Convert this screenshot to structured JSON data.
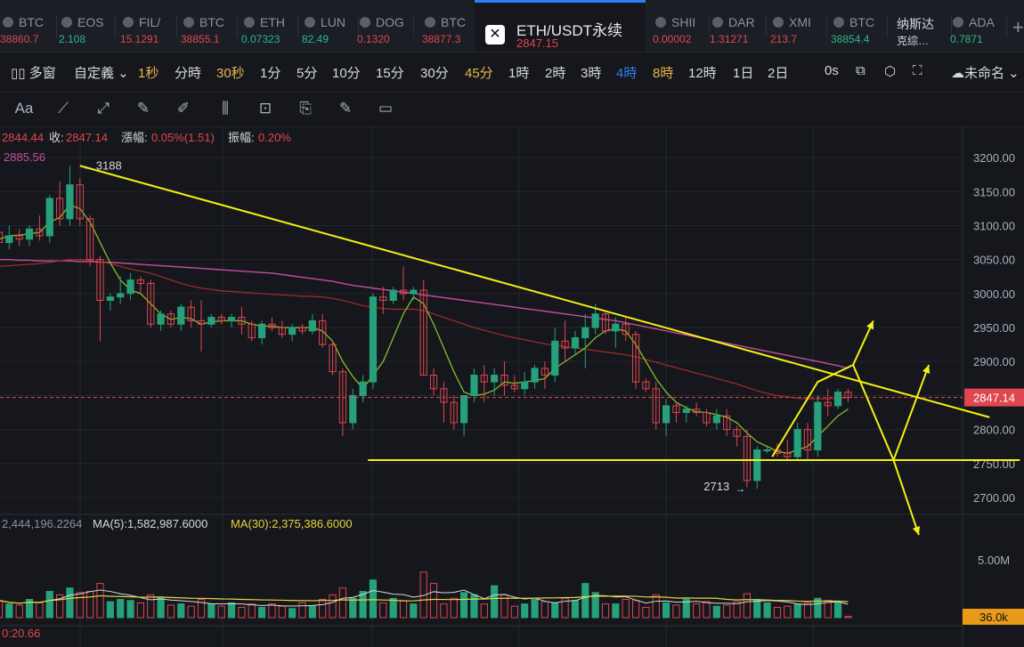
{
  "tickers": [
    {
      "name": "BTC",
      "price": "38860.7",
      "dir": "dn"
    },
    {
      "name": "EOS",
      "price": "2.108",
      "dir": "up"
    },
    {
      "name": "FIL/",
      "price": "15.1291",
      "dir": "dn"
    },
    {
      "name": "BTC",
      "price": "38855.1",
      "dir": "dn"
    },
    {
      "name": "ETH",
      "price": "0.07323",
      "dir": "up"
    },
    {
      "name": "LUN",
      "price": "82.49",
      "dir": "up"
    },
    {
      "name": "DOG",
      "price": "0.1320",
      "dir": "dn"
    },
    {
      "name": "BTC",
      "price": "38877.3",
      "dir": "dn"
    },
    {
      "name": "SHII",
      "price": "0.00002",
      "dir": "dn"
    },
    {
      "name": "DAR",
      "price": "1.31271",
      "dir": "dn"
    },
    {
      "name": "XMI",
      "price": "213.7",
      "dir": "dn"
    },
    {
      "name": "BTC",
      "price": "38854.4",
      "dir": "up"
    },
    {
      "name": "纳斯达",
      "price": "克综…",
      "dir": "plain"
    },
    {
      "name": "ADA",
      "price": "0.7871",
      "dir": "up"
    }
  ],
  "active_ticker": {
    "name": "ETH/USDT永续",
    "price": "2847.15",
    "plus": "+"
  },
  "toolbar": {
    "multi_window": "多窗",
    "custom": "自定義",
    "timeframes": [
      "1秒",
      "分時",
      "30秒",
      "1分",
      "5分",
      "10分",
      "15分",
      "30分",
      "45分",
      "1時",
      "2時",
      "3時",
      "4時",
      "8時",
      "12時",
      "1日",
      "2日"
    ],
    "selected": "4時",
    "highlighted": [
      "1秒",
      "30秒",
      "45分",
      "8時"
    ],
    "countdown": "0s",
    "layout_name": "未命名"
  },
  "drawing_tools": [
    "text-tool",
    "ruler-tool",
    "measure-tool",
    "pencil-tool",
    "brush-tool",
    "candle-tool",
    "lock-tool",
    "copy-tool",
    "note-tool",
    "trash-tool"
  ],
  "ohlc_line": {
    "open_label": "2844.44",
    "close_label": "收:",
    "close": "2847.14",
    "change_label": "漲幅:",
    "change": "0.05%(1.51)",
    "amp_label": "振幅:",
    "amp": "0.20%"
  },
  "ma_label": "2885.56",
  "volume_header": {
    "vol": "2,444,196.2264",
    "ma5_label": "MA(5):1,582,987.6000",
    "ma30_label": "MA(30):2,375,386.6000"
  },
  "bottom_indicator": "0:20.66",
  "chart_data": {
    "type": "candlestick",
    "symbol": "ETH/USDT",
    "interval": "4時",
    "y_ticks": [
      3200,
      3150,
      3100,
      3050,
      3000,
      2950,
      2900,
      2850,
      2800,
      2750,
      2700
    ],
    "y_tick_labels": [
      "3200.00",
      "3150.00",
      "3100.00",
      "3050.00",
      "3000.00",
      "2950.00",
      "2900.00",
      "2850.00",
      "2800.00",
      "2750.00",
      "2700.00"
    ],
    "ylim": [
      2683,
      3225
    ],
    "last_price": 2847.14,
    "last_price_label": "2847.14",
    "high_annotation": {
      "value": 3188,
      "label": "3188"
    },
    "low_annotation": {
      "value": 2713,
      "label": "2713"
    },
    "candles": [
      [
        3090,
        3105,
        3070,
        3075
      ],
      [
        3075,
        3100,
        3065,
        3085
      ],
      [
        3085,
        3095,
        3070,
        3080
      ],
      [
        3080,
        3100,
        3070,
        3095
      ],
      [
        3095,
        3115,
        3078,
        3085
      ],
      [
        3085,
        3145,
        3075,
        3140
      ],
      [
        3140,
        3165,
        3100,
        3110
      ],
      [
        3110,
        3188,
        3100,
        3160
      ],
      [
        3160,
        3170,
        3100,
        3110
      ],
      [
        3110,
        3115,
        3040,
        3050
      ],
      [
        3050,
        3055,
        2930,
        2990
      ],
      [
        2990,
        3000,
        2975,
        2995
      ],
      [
        2995,
        3025,
        2985,
        3000
      ],
      [
        3000,
        3030,
        2990,
        3020
      ],
      [
        3020,
        3025,
        3000,
        3015
      ],
      [
        3015,
        3020,
        2950,
        2955
      ],
      [
        2955,
        2975,
        2945,
        2970
      ],
      [
        2970,
        2975,
        2950,
        2955
      ],
      [
        2955,
        2985,
        2945,
        2980
      ],
      [
        2980,
        2990,
        2950,
        2960
      ],
      [
        2960,
        2990,
        2915,
        2955
      ],
      [
        2955,
        2970,
        2950,
        2965
      ],
      [
        2965,
        2970,
        2955,
        2960
      ],
      [
        2960,
        2970,
        2950,
        2965
      ],
      [
        2965,
        2980,
        2940,
        2955
      ],
      [
        2955,
        2960,
        2930,
        2935
      ],
      [
        2935,
        2960,
        2925,
        2955
      ],
      [
        2955,
        2965,
        2945,
        2950
      ],
      [
        2950,
        2960,
        2935,
        2940
      ],
      [
        2940,
        2955,
        2930,
        2950
      ],
      [
        2950,
        2955,
        2940,
        2945
      ],
      [
        2945,
        2970,
        2940,
        2960
      ],
      [
        2960,
        2970,
        2920,
        2925
      ],
      [
        2925,
        2930,
        2880,
        2885
      ],
      [
        2885,
        2890,
        2790,
        2810
      ],
      [
        2810,
        2860,
        2800,
        2850
      ],
      [
        2850,
        2880,
        2840,
        2870
      ],
      [
        2870,
        3000,
        2860,
        2995
      ],
      [
        2995,
        3010,
        2970,
        2990
      ],
      [
        2990,
        3010,
        2985,
        3005
      ],
      [
        3005,
        3040,
        2990,
        3000
      ],
      [
        3000,
        3010,
        2990,
        3005
      ],
      [
        3005,
        3020,
        2880,
        2880
      ],
      [
        2880,
        2890,
        2850,
        2860
      ],
      [
        2860,
        2870,
        2810,
        2840
      ],
      [
        2840,
        2850,
        2800,
        2810
      ],
      [
        2810,
        2850,
        2790,
        2850
      ],
      [
        2850,
        2890,
        2840,
        2880
      ],
      [
        2880,
        2895,
        2840,
        2870
      ],
      [
        2870,
        2890,
        2850,
        2880
      ],
      [
        2880,
        2900,
        2850,
        2865
      ],
      [
        2865,
        2880,
        2855,
        2860
      ],
      [
        2860,
        2885,
        2850,
        2870
      ],
      [
        2870,
        2895,
        2860,
        2890
      ],
      [
        2890,
        2900,
        2860,
        2880
      ],
      [
        2880,
        2950,
        2870,
        2930
      ],
      [
        2930,
        2960,
        2900,
        2920
      ],
      [
        2920,
        2945,
        2910,
        2935
      ],
      [
        2935,
        2970,
        2890,
        2950
      ],
      [
        2950,
        2985,
        2940,
        2970
      ],
      [
        2970,
        2975,
        2940,
        2945
      ],
      [
        2945,
        2965,
        2920,
        2955
      ],
      [
        2955,
        2965,
        2930,
        2940
      ],
      [
        2940,
        2945,
        2860,
        2870
      ],
      [
        2870,
        2875,
        2855,
        2860
      ],
      [
        2860,
        2870,
        2800,
        2810
      ],
      [
        2810,
        2845,
        2790,
        2835
      ],
      [
        2835,
        2840,
        2810,
        2825
      ],
      [
        2825,
        2835,
        2810,
        2830
      ],
      [
        2830,
        2840,
        2820,
        2825
      ],
      [
        2825,
        2830,
        2805,
        2810
      ],
      [
        2810,
        2830,
        2800,
        2820
      ],
      [
        2820,
        2830,
        2790,
        2800
      ],
      [
        2800,
        2805,
        2775,
        2790
      ],
      [
        2790,
        2800,
        2715,
        2725
      ],
      [
        2725,
        2775,
        2713,
        2770
      ],
      [
        2770,
        2775,
        2765,
        2770
      ],
      [
        2770,
        2780,
        2760,
        2765
      ],
      [
        2765,
        2785,
        2755,
        2760
      ],
      [
        2760,
        2810,
        2755,
        2800
      ],
      [
        2800,
        2810,
        2755,
        2770
      ],
      [
        2770,
        2850,
        2760,
        2840
      ],
      [
        2840,
        2860,
        2820,
        2835
      ],
      [
        2835,
        2860,
        2830,
        2855
      ],
      [
        2855,
        2860,
        2840,
        2847.14
      ]
    ],
    "volumes": [
      1.5,
      1.2,
      1.1,
      1.6,
      1.3,
      2.3,
      2.0,
      2.6,
      2.2,
      2.3,
      3.0,
      1.4,
      1.6,
      1.5,
      1.3,
      2.0,
      1.8,
      1.1,
      1.2,
      1.0,
      1.6,
      1.2,
      1.0,
      1.3,
      0.9,
      1.2,
      0.9,
      1.2,
      1.0,
      0.8,
      1.3,
      1.0,
      1.6,
      2.0,
      2.6,
      1.7,
      2.3,
      3.3,
      1.3,
      1.7,
      1.5,
      1.2,
      4.0,
      3.0,
      1.2,
      1.7,
      2.2,
      2.0,
      1.2,
      2.8,
      2.0,
      1.0,
      1.2,
      1.6,
      1.4,
      1.3,
      1.7,
      1.5,
      3.0,
      2.2,
      1.2,
      1.2,
      1.6,
      1.5,
      0.9,
      2.0,
      1.3,
      1.1,
      1.6,
      1.2,
      1.4,
      1.0,
      1.1,
      1.4,
      2.1,
      1.6,
      1.3,
      0.9,
      1.0,
      1.2,
      1.3,
      1.7,
      1.5,
      1.3,
      0.1
    ],
    "volume_tick_label": "5.00M",
    "volume_last_label": "36.0k",
    "ma_short": [
      3080,
      3085,
      3086,
      3088,
      3090,
      3105,
      3112,
      3130,
      3125,
      3105,
      3075,
      3045,
      3020,
      3005,
      3000,
      2985,
      2970,
      2962,
      2965,
      2963,
      2955,
      2958,
      2960,
      2960,
      2960,
      2955,
      2952,
      2952,
      2950,
      2950,
      2950,
      2950,
      2945,
      2930,
      2900,
      2878,
      2860,
      2880,
      2900,
      2935,
      2970,
      2995,
      2985,
      2955,
      2920,
      2885,
      2855,
      2850,
      2852,
      2858,
      2870,
      2868,
      2870,
      2872,
      2875,
      2890,
      2900,
      2910,
      2920,
      2935,
      2945,
      2948,
      2945,
      2925,
      2900,
      2875,
      2855,
      2840,
      2832,
      2826,
      2825,
      2822,
      2818,
      2810,
      2795,
      2782,
      2775,
      2768,
      2765,
      2770,
      2775,
      2790,
      2805,
      2820,
      2830
    ],
    "ma_long": [
      3040,
      3041,
      3042,
      3043,
      3044,
      3046,
      3048,
      3050,
      3050,
      3049,
      3047,
      3044,
      3040,
      3036,
      3033,
      3030,
      3025,
      3020,
      3015,
      3011,
      3008,
      3006,
      3004,
      3003,
      3002,
      3001,
      3000,
      2999,
      2998,
      2997,
      2996,
      2996,
      2995,
      2993,
      2990,
      2986,
      2982,
      2980,
      2978,
      2977,
      2977,
      2977,
      2975,
      2970,
      2965,
      2960,
      2955,
      2950,
      2946,
      2942,
      2938,
      2935,
      2932,
      2929,
      2926,
      2924,
      2922,
      2920,
      2918,
      2916,
      2914,
      2912,
      2910,
      2907,
      2903,
      2899,
      2895,
      2891,
      2887,
      2883,
      2879,
      2875,
      2871,
      2867,
      2862,
      2857,
      2853,
      2850,
      2848,
      2846,
      2845,
      2845,
      2845,
      2846,
      2847
    ],
    "ma_pink": [
      3050,
      3050,
      3049,
      3049,
      3048,
      3048,
      3048,
      3048,
      3047,
      3047,
      3046,
      3046,
      3045,
      3044,
      3043,
      3042,
      3041,
      3040,
      3039,
      3038,
      3037,
      3036,
      3035,
      3034,
      3033,
      3032,
      3031,
      3030,
      3028,
      3026,
      3024,
      3022,
      3020,
      3018,
      3015,
      3012,
      3010,
      3008,
      3006,
      3004,
      3002,
      3000,
      2998,
      2996,
      2994,
      2992,
      2990,
      2988,
      2986,
      2984,
      2982,
      2980,
      2978,
      2976,
      2974,
      2972,
      2970,
      2968,
      2966,
      2964,
      2962,
      2960,
      2957,
      2954,
      2951,
      2948,
      2945,
      2942,
      2939,
      2936,
      2933,
      2930,
      2927,
      2924,
      2921,
      2918,
      2915,
      2912,
      2909,
      2906,
      2903,
      2900,
      2897,
      2894,
      2890
    ],
    "trendlines": [
      {
        "name": "descending",
        "color": "#f5f014",
        "from": [
          8,
          3188
        ],
        "to": [
          98,
          2818
        ]
      },
      {
        "name": "support",
        "color": "#f5f014",
        "from": [
          36.5,
          2755
        ],
        "to": [
          101,
          2755
        ]
      }
    ],
    "projection_arrows": [
      {
        "color": "#f5f014",
        "points": [
          [
            76.5,
            2760
          ],
          [
            81,
            2870
          ],
          [
            84.5,
            2895
          ],
          [
            86.5,
            2960
          ]
        ]
      },
      {
        "color": "#f5f014",
        "points": [
          [
            84.5,
            2895
          ],
          [
            88.5,
            2755
          ],
          [
            92,
            2895
          ]
        ]
      },
      {
        "color": "#f5f014",
        "points": [
          [
            88.5,
            2755
          ],
          [
            91,
            2645
          ]
        ]
      }
    ]
  }
}
